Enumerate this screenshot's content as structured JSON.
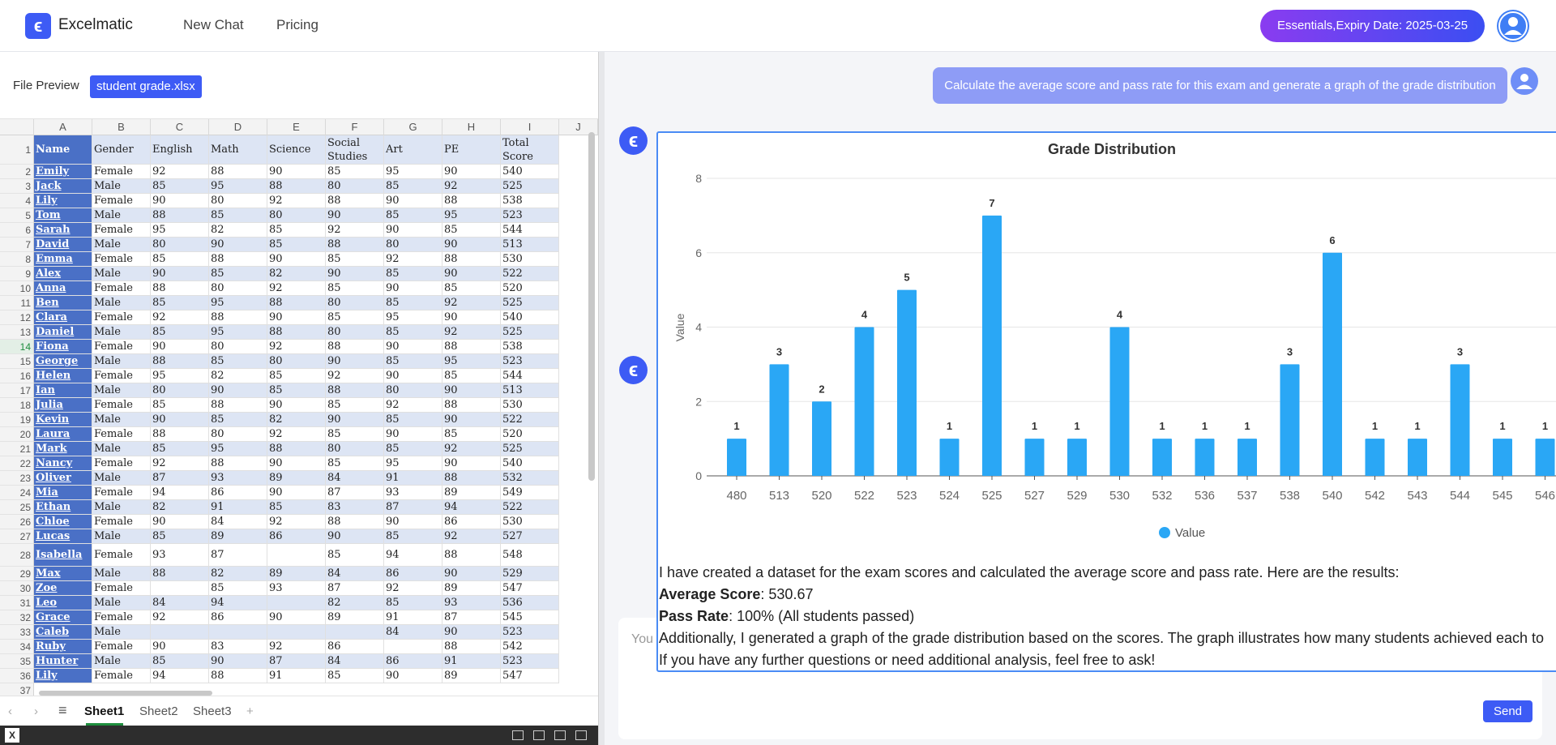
{
  "app": {
    "logo_glyph": "ϵ",
    "name": "Excelmatic",
    "nav": [
      "New Chat",
      "Pricing"
    ],
    "plan_badge": "Essentials,Expiry Date: 2025-03-25",
    "avatar_icon": "user-avatar-icon"
  },
  "file_preview": {
    "label": "File Preview",
    "file_name": "student grade.xlsx"
  },
  "spreadsheet": {
    "column_letters": [
      "A",
      "B",
      "C",
      "D",
      "E",
      "F",
      "G",
      "H",
      "I",
      "J"
    ],
    "headers": [
      "Name",
      "Gender",
      "English",
      "Math",
      "Science",
      "Social Studies",
      "Art",
      "PE",
      "Total Score"
    ],
    "rows": [
      [
        "Emily",
        "Female",
        "92",
        "88",
        "90",
        "85",
        "95",
        "90",
        "540"
      ],
      [
        "Jack",
        "Male",
        "85",
        "95",
        "88",
        "80",
        "85",
        "92",
        "525"
      ],
      [
        "Lily",
        "Female",
        "90",
        "80",
        "92",
        "88",
        "90",
        "88",
        "538"
      ],
      [
        "Tom",
        "Male",
        "88",
        "85",
        "80",
        "90",
        "85",
        "95",
        "523"
      ],
      [
        "Sarah",
        "Female",
        "95",
        "82",
        "85",
        "92",
        "90",
        "85",
        "544"
      ],
      [
        "David",
        "Male",
        "80",
        "90",
        "85",
        "88",
        "80",
        "90",
        "513"
      ],
      [
        "Emma",
        "Female",
        "85",
        "88",
        "90",
        "85",
        "92",
        "88",
        "530"
      ],
      [
        "Alex",
        "Male",
        "90",
        "85",
        "82",
        "90",
        "85",
        "90",
        "522"
      ],
      [
        "Anna",
        "Female",
        "88",
        "80",
        "92",
        "85",
        "90",
        "85",
        "520"
      ],
      [
        "Ben",
        "Male",
        "85",
        "95",
        "88",
        "80",
        "85",
        "92",
        "525"
      ],
      [
        "Clara",
        "Female",
        "92",
        "88",
        "90",
        "85",
        "95",
        "90",
        "540"
      ],
      [
        "Daniel",
        "Male",
        "85",
        "95",
        "88",
        "80",
        "85",
        "92",
        "525"
      ],
      [
        "Fiona",
        "Female",
        "90",
        "80",
        "92",
        "88",
        "90",
        "88",
        "538"
      ],
      [
        "George",
        "Male",
        "88",
        "85",
        "80",
        "90",
        "85",
        "95",
        "523"
      ],
      [
        "Helen",
        "Female",
        "95",
        "82",
        "85",
        "92",
        "90",
        "85",
        "544"
      ],
      [
        "Ian",
        "Male",
        "80",
        "90",
        "85",
        "88",
        "80",
        "90",
        "513"
      ],
      [
        "Julia",
        "Female",
        "85",
        "88",
        "90",
        "85",
        "92",
        "88",
        "530"
      ],
      [
        "Kevin",
        "Male",
        "90",
        "85",
        "82",
        "90",
        "85",
        "90",
        "522"
      ],
      [
        "Laura",
        "Female",
        "88",
        "80",
        "92",
        "85",
        "90",
        "85",
        "520"
      ],
      [
        "Mark",
        "Male",
        "85",
        "95",
        "88",
        "80",
        "85",
        "92",
        "525"
      ],
      [
        "Nancy",
        "Female",
        "92",
        "88",
        "90",
        "85",
        "95",
        "90",
        "540"
      ],
      [
        "Oliver",
        "Male",
        "87",
        "93",
        "89",
        "84",
        "91",
        "88",
        "532"
      ],
      [
        "Mia",
        "Female",
        "94",
        "86",
        "90",
        "87",
        "93",
        "89",
        "549"
      ],
      [
        "Ethan",
        "Male",
        "82",
        "91",
        "85",
        "83",
        "87",
        "94",
        "522"
      ],
      [
        "Chloe",
        "Female",
        "90",
        "84",
        "92",
        "88",
        "90",
        "86",
        "530"
      ],
      [
        "Lucas",
        "Male",
        "85",
        "89",
        "86",
        "90",
        "85",
        "92",
        "527"
      ],
      [
        "Isabella",
        "Female",
        "93",
        "87",
        "",
        "85",
        "94",
        "88",
        "548"
      ],
      [
        "Max",
        "Male",
        "88",
        "82",
        "89",
        "84",
        "86",
        "90",
        "529"
      ],
      [
        "Zoe",
        "Female",
        "",
        "85",
        "93",
        "87",
        "92",
        "89",
        "547"
      ],
      [
        "Leo",
        "Male",
        "84",
        "94",
        "",
        "82",
        "85",
        "93",
        "536"
      ],
      [
        "Grace",
        "Female",
        "92",
        "86",
        "90",
        "89",
        "91",
        "87",
        "545"
      ],
      [
        "Caleb",
        "Male",
        "",
        "",
        "",
        "",
        "84",
        "90",
        "523"
      ],
      [
        "Ruby",
        "Female",
        "90",
        "83",
        "92",
        "86",
        "",
        "88",
        "542"
      ],
      [
        "Hunter",
        "Male",
        "85",
        "90",
        "87",
        "84",
        "86",
        "91",
        "523"
      ],
      [
        "Lily",
        "Female",
        "94",
        "88",
        "91",
        "85",
        "90",
        "89",
        "547"
      ]
    ],
    "visible_row_numbers": [
      "1",
      "2",
      "3",
      "4",
      "5",
      "6",
      "7",
      "8",
      "9",
      "10",
      "11",
      "12",
      "13",
      "14",
      "15",
      "16",
      "17",
      "18",
      "19",
      "20",
      "21",
      "22",
      "23",
      "24",
      "25",
      "26",
      "27",
      "28",
      "29",
      "30",
      "31",
      "32",
      "33",
      "34",
      "35",
      "36",
      "37"
    ],
    "sheet_tabs": [
      "Sheet1",
      "Sheet2",
      "Sheet3"
    ],
    "add_sheet_glyph": "+",
    "menu_glyph": "≡"
  },
  "chat": {
    "user_message": "Calculate the average score and pass rate for this exam and generate a graph of the grade distribution",
    "bot_logo_glyph": "ϵ",
    "input_placeholder": "You",
    "send_label": "Send",
    "answer": {
      "intro": "I have created a dataset for the exam scores and calculated the average score and pass rate. Here are the results:",
      "avg_label": "Average Score",
      "avg_value": ": 530.67",
      "pass_label": "Pass Rate",
      "pass_value": ": 100% (All students passed)",
      "additional": "Additionally, I generated a graph of the grade distribution based on the scores. The graph illustrates how many students achieved each to",
      "closing": "If you have any further questions or need additional analysis, feel free to ask!"
    }
  },
  "colors": {
    "accent": "#3d5bf5",
    "bar": "#2aa7f5",
    "name_column": "#4a70c6",
    "alt_row": "#dde5f4"
  },
  "chart_data": {
    "type": "bar",
    "title": "Grade Distribution",
    "ylabel": "Value",
    "xlabel": "",
    "categories": [
      "480",
      "513",
      "520",
      "522",
      "523",
      "524",
      "525",
      "527",
      "529",
      "530",
      "532",
      "536",
      "537",
      "538",
      "540",
      "542",
      "543",
      "544",
      "545",
      "546"
    ],
    "series": [
      {
        "name": "Value",
        "values": [
          1,
          3,
          2,
          4,
          5,
          1,
          7,
          1,
          1,
          4,
          1,
          1,
          1,
          3,
          6,
          1,
          1,
          3,
          1,
          1
        ]
      }
    ],
    "ylim": [
      0,
      8
    ],
    "yticks": [
      "0",
      "2",
      "4",
      "6",
      "8"
    ],
    "grid": true,
    "legend_position": "bottom",
    "data_labels": true
  }
}
